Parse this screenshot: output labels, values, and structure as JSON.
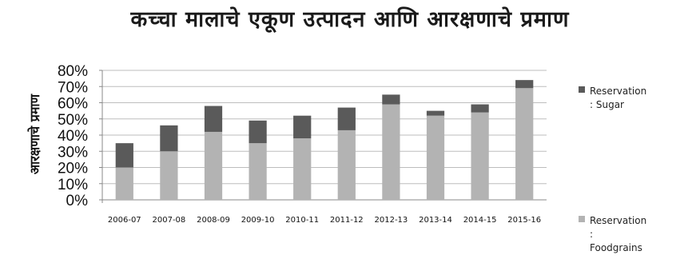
{
  "chart_data": {
    "type": "bar",
    "stacked": true,
    "title": "कच्चा मालाचे एकूण उत्पादन आणि आरक्षणाचे प्रमाण",
    "ylabel": "आरक्षणाचे प्रमाण",
    "xlabel": "",
    "ylim": [
      0,
      80
    ],
    "yticks": [
      "0%",
      "10%",
      "20%",
      "30%",
      "40%",
      "50%",
      "60%",
      "70%",
      "80%"
    ],
    "grid": true,
    "legend_position": "right",
    "categories": [
      "2006-07",
      "2007-08",
      "2008-09",
      "2009-10",
      "2010-11",
      "2011-12",
      "2012-13",
      "2013-14",
      "2014-15",
      "2015-16"
    ],
    "series": [
      {
        "name_lines": [
          "Reservation",
          ":",
          "Foodgrains"
        ],
        "color": "#b3b3b3",
        "values": [
          20,
          30,
          42,
          35,
          38,
          43,
          59,
          52,
          54,
          69
        ]
      },
      {
        "name_lines": [
          "Reservation",
          ": Sugar"
        ],
        "color": "#5a5a5a",
        "values": [
          15,
          16,
          16,
          14,
          14,
          14,
          6,
          3,
          5,
          5
        ]
      }
    ]
  }
}
